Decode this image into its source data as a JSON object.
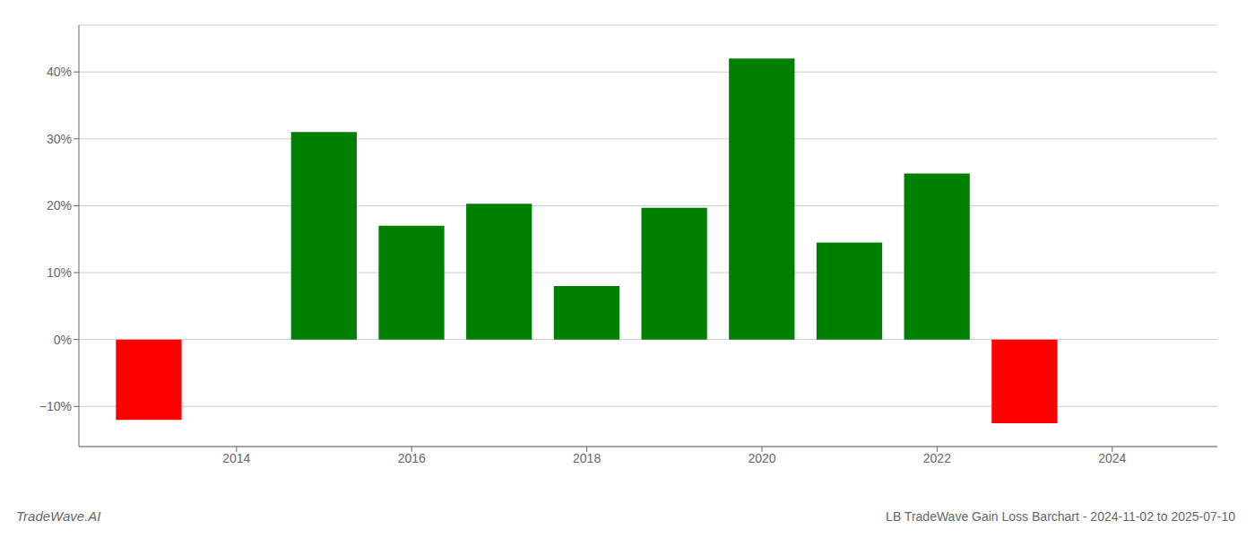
{
  "chart_data": {
    "type": "bar",
    "title": "LB TradeWave Gain Loss Barchart - 2024-11-02 to 2025-07-10",
    "annotations": [
      "TradeWave.AI"
    ],
    "x": [
      2013,
      2015,
      2016,
      2017,
      2018,
      2019,
      2020,
      2021,
      2022,
      2023
    ],
    "values": [
      -12.0,
      31.0,
      17.0,
      20.3,
      8.0,
      19.7,
      42.0,
      14.5,
      24.8,
      -12.5
    ],
    "colors": [
      "#ff0000",
      "#008000",
      "#008000",
      "#008000",
      "#008000",
      "#008000",
      "#008000",
      "#008000",
      "#008000",
      "#ff0000"
    ],
    "xlim": [
      2012.2,
      2025.2
    ],
    "xticks": [
      2014,
      2016,
      2018,
      2020,
      2022,
      2024
    ],
    "ylim": [
      -16,
      47
    ],
    "yticks": [
      {
        "value": -10,
        "label": "−10%"
      },
      {
        "value": 0,
        "label": "0%"
      },
      {
        "value": 10,
        "label": "10%"
      },
      {
        "value": 20,
        "label": "20%"
      },
      {
        "value": 30,
        "label": "30%"
      },
      {
        "value": 40,
        "label": "40%"
      }
    ],
    "grid": true
  }
}
